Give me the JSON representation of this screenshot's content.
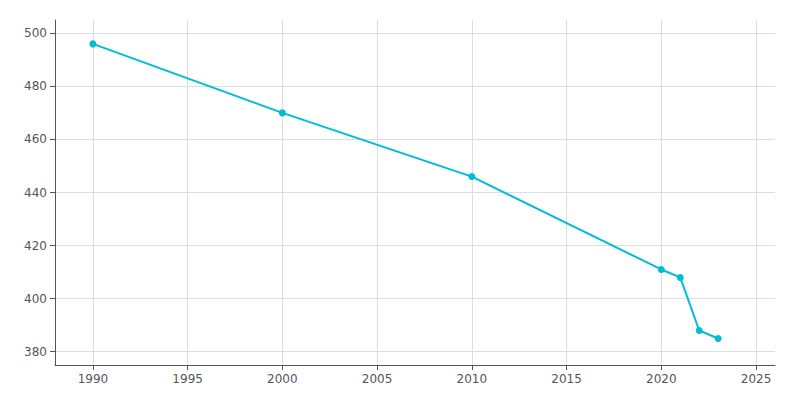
{
  "chart_data": {
    "type": "line",
    "x": [
      1990,
      2000,
      2010,
      2020,
      2021,
      2022,
      2023
    ],
    "values": [
      496,
      470,
      446,
      411,
      408,
      388,
      385
    ],
    "color": "#00bcd4",
    "marker": "circle",
    "xlim": [
      1988,
      2026
    ],
    "xticks": [
      1990,
      1995,
      2000,
      2005,
      2010,
      2015,
      2020,
      2025
    ],
    "ylim": [
      375,
      505
    ],
    "yticks": [
      380,
      400,
      420,
      440,
      460,
      480,
      500
    ],
    "grid": true
  }
}
